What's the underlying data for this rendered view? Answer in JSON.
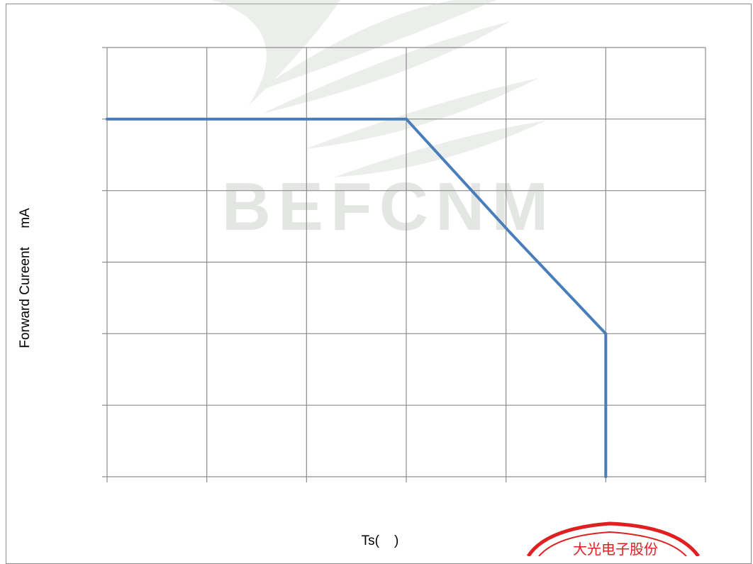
{
  "chart_data": {
    "type": "line",
    "title": "",
    "xlabel": "Ts(    )",
    "ylabel": "Forward Cureent     mA",
    "x_tick_labels": [],
    "y_tick_labels": [],
    "x_grid_count": 6,
    "y_grid_count": 6,
    "xlim": [
      0,
      6
    ],
    "ylim": [
      0,
      6
    ],
    "grid": true,
    "legend": "none",
    "series": [
      {
        "x": [
          0,
          3,
          4.05,
          5,
          5
        ],
        "y": [
          5,
          5,
          3.4,
          2,
          0
        ],
        "color": "#4a7ebb"
      }
    ],
    "watermark_text": "BEFCNM",
    "stamp_text": "大光电子股份",
    "colors": {
      "grid": "#8c8c8c",
      "line": "#4a7ebb",
      "watermark": "#b7c3b9",
      "stamp": "#e02020"
    }
  }
}
